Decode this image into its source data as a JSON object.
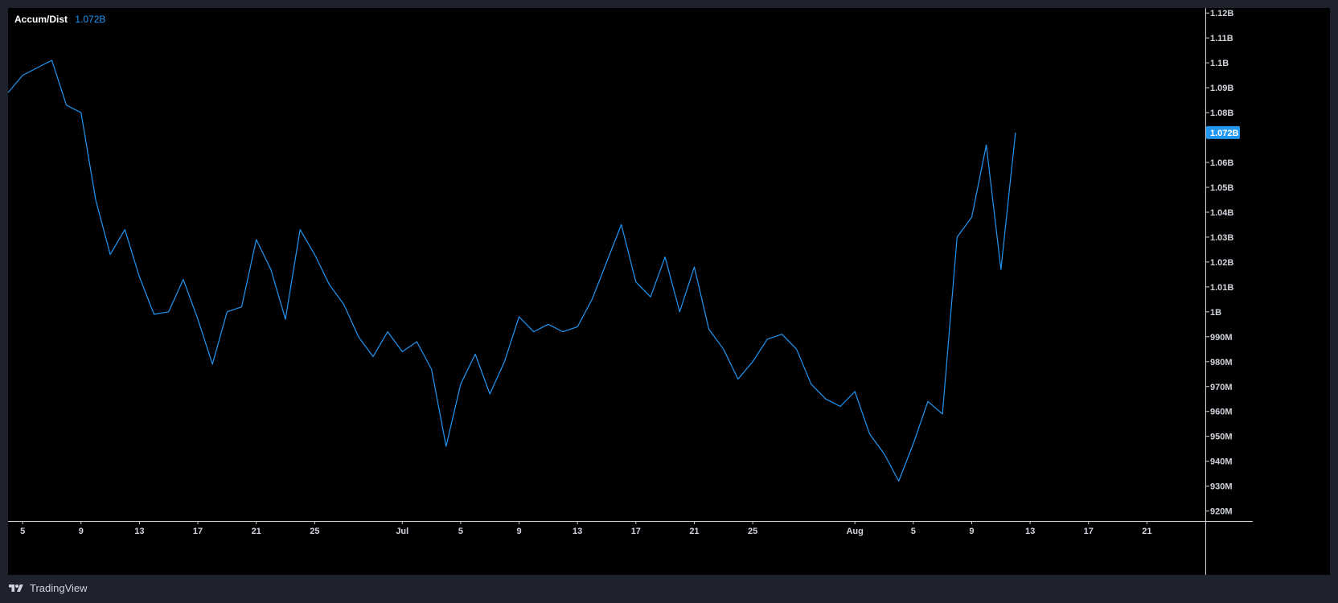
{
  "indicator": {
    "name": "Accum/Dist",
    "value": "1.072B",
    "color": "#2196f3"
  },
  "branding": {
    "name": "TradingView"
  },
  "chart_data": {
    "type": "line",
    "title": "",
    "series": [
      {
        "name": "Accum/Dist",
        "color": "#2196f3",
        "x": [
          "2024-06-04",
          "2024-06-05",
          "2024-06-07",
          "2024-06-08",
          "2024-06-09",
          "2024-06-10",
          "2024-06-11",
          "2024-06-12",
          "2024-06-13",
          "2024-06-14",
          "2024-06-15",
          "2024-06-16",
          "2024-06-17",
          "2024-06-18",
          "2024-06-19",
          "2024-06-20",
          "2024-06-21",
          "2024-06-22",
          "2024-06-23",
          "2024-06-24",
          "2024-06-25",
          "2024-06-26",
          "2024-06-27",
          "2024-06-28",
          "2024-06-29",
          "2024-06-30",
          "2024-07-01",
          "2024-07-02",
          "2024-07-03",
          "2024-07-04",
          "2024-07-05",
          "2024-07-06",
          "2024-07-07",
          "2024-07-08",
          "2024-07-09",
          "2024-07-10",
          "2024-07-11",
          "2024-07-12",
          "2024-07-13",
          "2024-07-14",
          "2024-07-15",
          "2024-07-16",
          "2024-07-17",
          "2024-07-18",
          "2024-07-19",
          "2024-07-20",
          "2024-07-21",
          "2024-07-22",
          "2024-07-23",
          "2024-07-24",
          "2024-07-25",
          "2024-07-26",
          "2024-07-27",
          "2024-07-28",
          "2024-07-29",
          "2024-07-30",
          "2024-07-31",
          "2024-08-01",
          "2024-08-02",
          "2024-08-03",
          "2024-08-04",
          "2024-08-05",
          "2024-08-06",
          "2024-08-07",
          "2024-08-08",
          "2024-08-09",
          "2024-08-10",
          "2024-08-11",
          "2024-08-12"
        ],
        "values": [
          1.088,
          1.095,
          1.101,
          1.083,
          1.08,
          1.045,
          1.023,
          1.033,
          1.014,
          0.999,
          1.0,
          1.013,
          0.997,
          0.979,
          1.0,
          1.002,
          1.029,
          1.017,
          0.997,
          1.033,
          1.023,
          1.011,
          1.003,
          0.99,
          0.982,
          0.992,
          0.984,
          0.988,
          0.977,
          0.946,
          0.971,
          0.983,
          0.967,
          0.98,
          0.998,
          0.992,
          0.995,
          0.992,
          0.994,
          1.005,
          1.02,
          1.035,
          1.012,
          1.006,
          1.022,
          1.0,
          1.018,
          0.993,
          0.985,
          0.973,
          0.98,
          0.989,
          0.991,
          0.985,
          0.971,
          0.965,
          0.962,
          0.968,
          0.951,
          0.943,
          0.932,
          0.947,
          0.964,
          0.959,
          1.03,
          1.038,
          1.067,
          1.017,
          1.072
        ]
      }
    ],
    "ylim": [
      0.916,
      1.122
    ],
    "yunit": "B",
    "y_ticks": [
      {
        "value": 0.92,
        "label": "920M"
      },
      {
        "value": 0.93,
        "label": "930M"
      },
      {
        "value": 0.94,
        "label": "940M"
      },
      {
        "value": 0.95,
        "label": "950M"
      },
      {
        "value": 0.96,
        "label": "960M"
      },
      {
        "value": 0.97,
        "label": "970M"
      },
      {
        "value": 0.98,
        "label": "980M"
      },
      {
        "value": 0.99,
        "label": "990M"
      },
      {
        "value": 1.0,
        "label": "1B"
      },
      {
        "value": 1.01,
        "label": "1.01B"
      },
      {
        "value": 1.02,
        "label": "1.02B"
      },
      {
        "value": 1.03,
        "label": "1.03B"
      },
      {
        "value": 1.04,
        "label": "1.04B"
      },
      {
        "value": 1.05,
        "label": "1.05B"
      },
      {
        "value": 1.06,
        "label": "1.06B"
      },
      {
        "value": 1.08,
        "label": "1.08B"
      },
      {
        "value": 1.09,
        "label": "1.09B"
      },
      {
        "value": 1.1,
        "label": "1.1B"
      },
      {
        "value": 1.11,
        "label": "1.11B"
      },
      {
        "value": 1.12,
        "label": "1.12B"
      }
    ],
    "last_value": 1.072,
    "last_value_label": "1.072B",
    "xlim": [
      "2024-06-04",
      "2024-08-25"
    ],
    "x_ticks": [
      {
        "value": "2024-06-05",
        "label": "5"
      },
      {
        "value": "2024-06-09",
        "label": "9"
      },
      {
        "value": "2024-06-13",
        "label": "13"
      },
      {
        "value": "2024-06-17",
        "label": "17"
      },
      {
        "value": "2024-06-21",
        "label": "21"
      },
      {
        "value": "2024-06-25",
        "label": "25"
      },
      {
        "value": "2024-07-01",
        "label": "Jul"
      },
      {
        "value": "2024-07-05",
        "label": "5"
      },
      {
        "value": "2024-07-09",
        "label": "9"
      },
      {
        "value": "2024-07-13",
        "label": "13"
      },
      {
        "value": "2024-07-17",
        "label": "17"
      },
      {
        "value": "2024-07-21",
        "label": "21"
      },
      {
        "value": "2024-07-25",
        "label": "25"
      },
      {
        "value": "2024-08-01",
        "label": "Aug"
      },
      {
        "value": "2024-08-05",
        "label": "5"
      },
      {
        "value": "2024-08-09",
        "label": "9"
      },
      {
        "value": "2024-08-13",
        "label": "13"
      },
      {
        "value": "2024-08-17",
        "label": "17"
      },
      {
        "value": "2024-08-21",
        "label": "21"
      }
    ],
    "grid": false,
    "legend": "top-left",
    "background": "#000000",
    "axis_text_color": "#d1d4dc"
  }
}
